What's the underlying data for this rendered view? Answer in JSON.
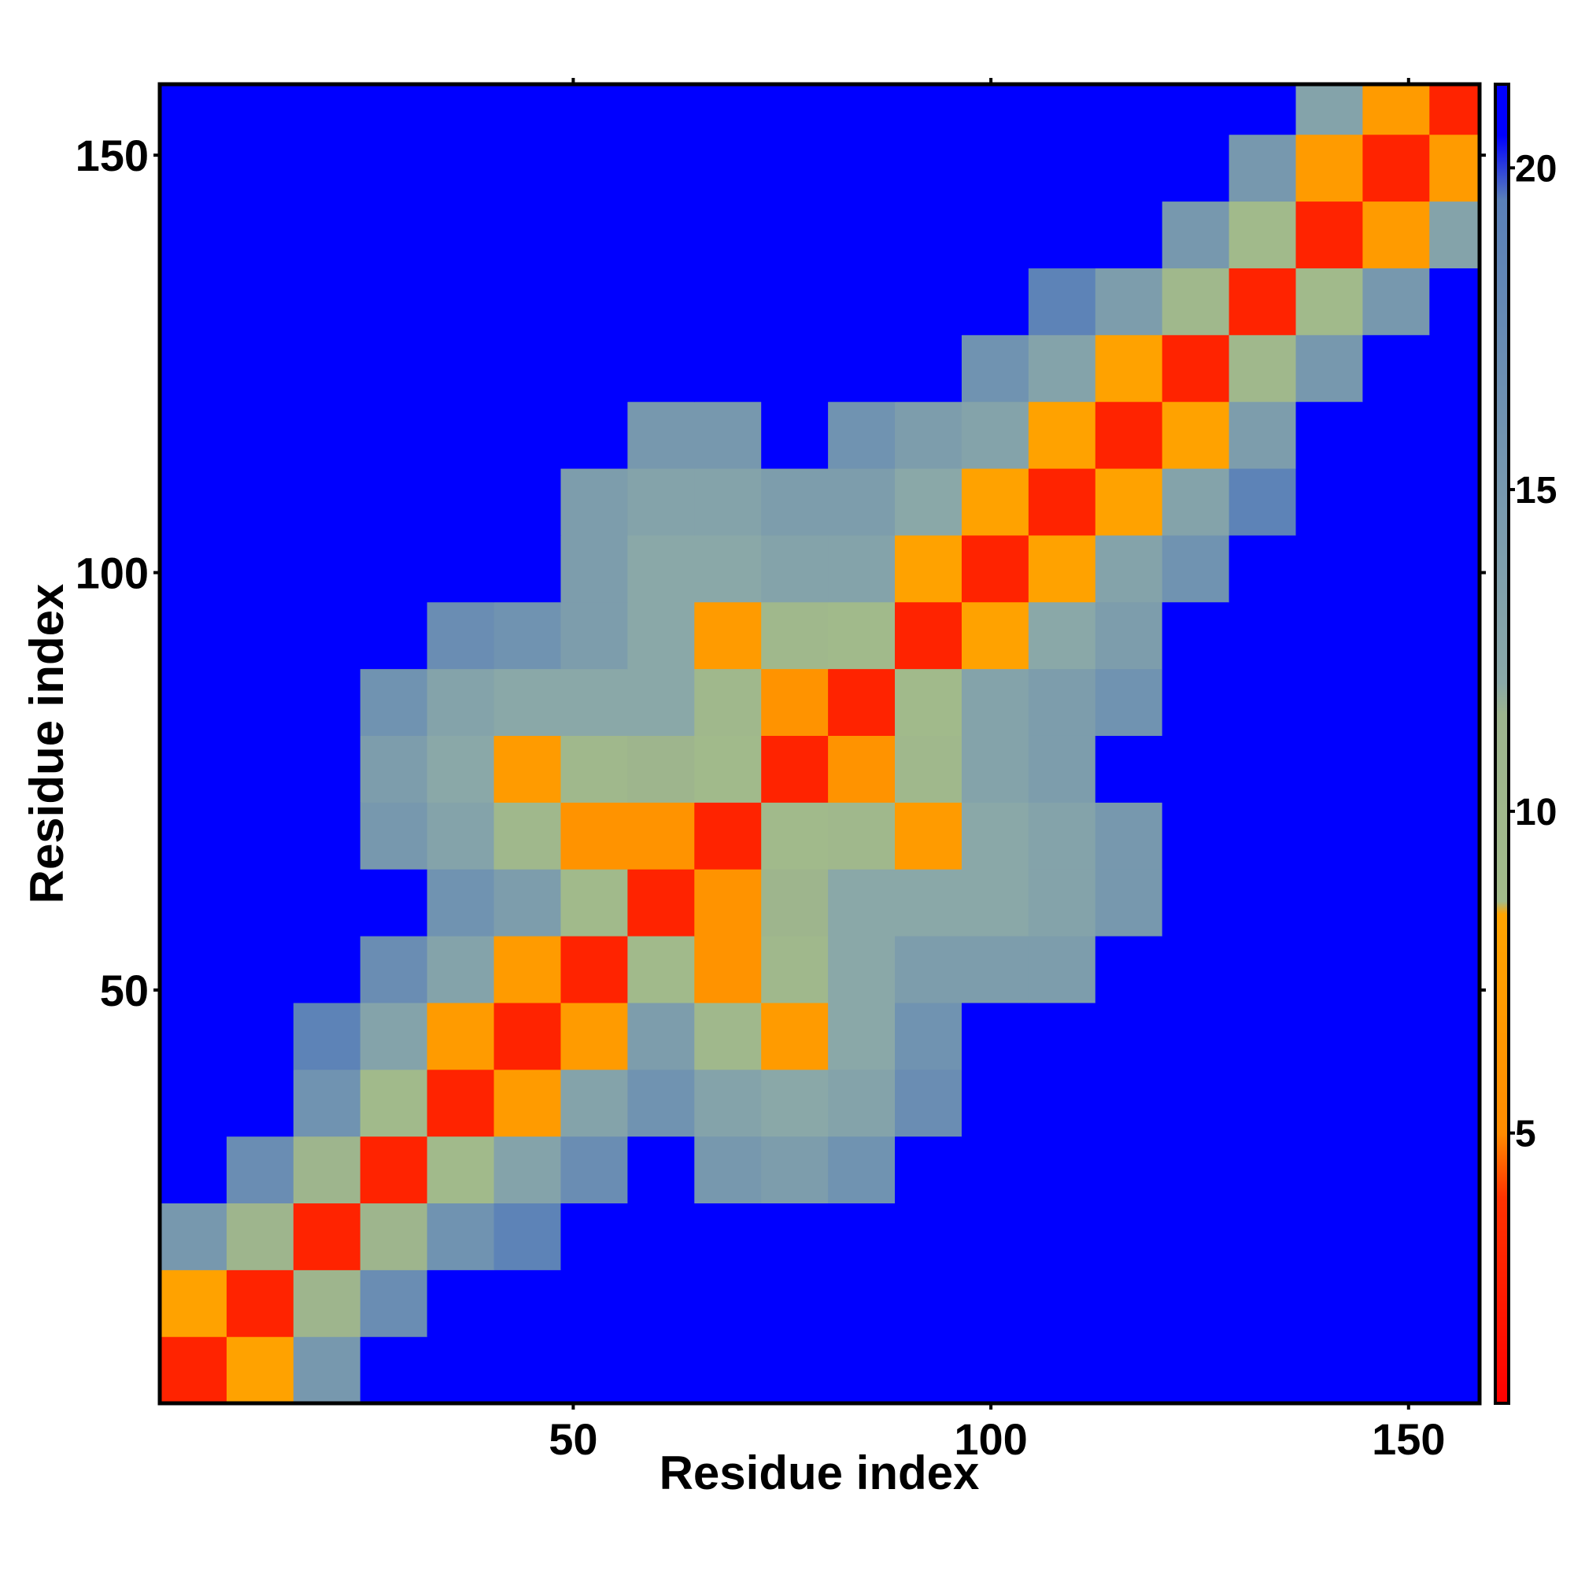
{
  "chart_data": {
    "type": "heatmap",
    "xlabel": "Residue index",
    "ylabel": "Residue index",
    "xbins": [
      0.5,
      8.5,
      16.5,
      24.5,
      32.5,
      40.5,
      48.5,
      56.5,
      64.5,
      72.5,
      80.5,
      88.5,
      96.5,
      104.5,
      112.5,
      120.5,
      128.5,
      136.5,
      144.5,
      152.5,
      158.5
    ],
    "ybins": [
      0.5,
      8.5,
      16.5,
      24.5,
      32.5,
      40.5,
      48.5,
      56.5,
      64.5,
      72.5,
      80.5,
      88.5,
      96.5,
      104.5,
      112.5,
      120.5,
      128.5,
      136.5,
      144.5,
      152.5,
      158.5
    ],
    "z": [
      [
        3,
        8,
        15,
        21,
        21,
        21,
        21,
        21,
        21,
        21,
        21,
        21,
        21,
        21,
        21,
        21,
        21,
        21,
        21,
        21
      ],
      [
        8,
        3,
        11,
        17,
        21,
        21,
        21,
        21,
        21,
        21,
        21,
        21,
        21,
        21,
        21,
        21,
        21,
        21,
        21,
        21
      ],
      [
        15,
        11,
        3,
        11,
        16,
        19,
        21,
        21,
        21,
        21,
        21,
        21,
        21,
        21,
        21,
        21,
        21,
        21,
        21,
        21
      ],
      [
        21,
        17,
        11,
        3,
        9,
        13,
        17,
        21,
        15,
        14,
        16,
        21,
        21,
        21,
        21,
        21,
        21,
        21,
        21,
        21
      ],
      [
        21,
        21,
        16,
        9,
        3,
        7,
        13,
        16,
        13,
        12,
        13,
        17,
        21,
        21,
        21,
        21,
        21,
        21,
        21,
        21
      ],
      [
        21,
        21,
        19,
        13,
        7,
        3,
        7,
        14,
        10,
        7,
        12,
        16,
        21,
        21,
        21,
        21,
        21,
        21,
        21,
        21
      ],
      [
        21,
        21,
        21,
        17,
        13,
        7,
        3,
        9,
        6,
        10,
        12,
        14,
        14,
        14,
        21,
        21,
        21,
        21,
        21,
        21
      ],
      [
        21,
        21,
        21,
        21,
        16,
        14,
        9,
        3,
        6,
        11,
        12,
        12,
        12,
        13,
        15,
        21,
        21,
        21,
        21,
        21
      ],
      [
        21,
        21,
        21,
        15,
        13,
        10,
        6,
        6,
        3,
        9,
        10,
        7,
        12,
        13,
        15,
        21,
        21,
        21,
        21,
        21
      ],
      [
        21,
        21,
        21,
        14,
        12,
        7,
        10,
        11,
        9,
        3,
        6,
        10,
        13,
        14,
        21,
        21,
        21,
        21,
        21,
        21
      ],
      [
        21,
        21,
        21,
        16,
        13,
        12,
        12,
        12,
        10,
        6,
        3,
        9,
        13,
        14,
        16,
        21,
        21,
        21,
        21,
        21
      ],
      [
        21,
        21,
        21,
        21,
        17,
        16,
        14,
        12,
        7,
        10,
        9,
        3,
        8,
        12,
        14,
        21,
        21,
        21,
        21,
        21
      ],
      [
        21,
        21,
        21,
        21,
        21,
        21,
        14,
        12,
        12,
        13,
        13,
        8,
        3,
        8,
        13,
        16,
        21,
        21,
        21,
        21
      ],
      [
        21,
        21,
        21,
        21,
        21,
        21,
        14,
        13,
        13,
        14,
        14,
        12,
        8,
        3,
        8,
        13,
        19,
        21,
        21,
        21
      ],
      [
        21,
        21,
        21,
        21,
        21,
        21,
        21,
        15,
        15,
        21,
        16,
        14,
        13,
        8,
        3,
        8,
        14,
        21,
        21,
        21
      ],
      [
        21,
        21,
        21,
        21,
        21,
        21,
        21,
        21,
        21,
        21,
        21,
        21,
        16,
        13,
        8,
        3,
        10,
        15,
        21,
        21
      ],
      [
        21,
        21,
        21,
        21,
        21,
        21,
        21,
        21,
        21,
        21,
        21,
        21,
        21,
        19,
        14,
        10,
        3,
        9,
        15,
        21
      ],
      [
        21,
        21,
        21,
        21,
        21,
        21,
        21,
        21,
        21,
        21,
        21,
        21,
        21,
        21,
        21,
        15,
        9,
        3,
        7,
        13
      ],
      [
        21,
        21,
        21,
        21,
        21,
        21,
        21,
        21,
        21,
        21,
        21,
        21,
        21,
        21,
        21,
        21,
        15,
        7,
        3,
        7
      ],
      [
        21,
        21,
        21,
        21,
        21,
        21,
        21,
        21,
        21,
        21,
        21,
        21,
        21,
        21,
        21,
        21,
        21,
        13,
        7,
        3
      ]
    ],
    "xlim": [
      0.5,
      158.5
    ],
    "ylim": [
      0.5,
      158.5
    ],
    "xticks": [
      50,
      100,
      150
    ],
    "yticks": [
      50,
      100,
      150
    ],
    "clim": [
      0.8,
      21.3
    ],
    "cticks": [
      5,
      10,
      15,
      20
    ],
    "colorscale": [
      [
        0.8,
        "#ff0000"
      ],
      [
        4,
        "#ff3300"
      ],
      [
        5,
        "#ff8c00"
      ],
      [
        8.4,
        "#ffa500"
      ],
      [
        8.6,
        "#a2bb8a"
      ],
      [
        11.5,
        "#9db48e"
      ],
      [
        12,
        "#8aa8a8"
      ],
      [
        19.5,
        "#5a80b8"
      ],
      [
        20.5,
        "#0000ff"
      ],
      [
        21.3,
        "#0000ff"
      ]
    ]
  }
}
